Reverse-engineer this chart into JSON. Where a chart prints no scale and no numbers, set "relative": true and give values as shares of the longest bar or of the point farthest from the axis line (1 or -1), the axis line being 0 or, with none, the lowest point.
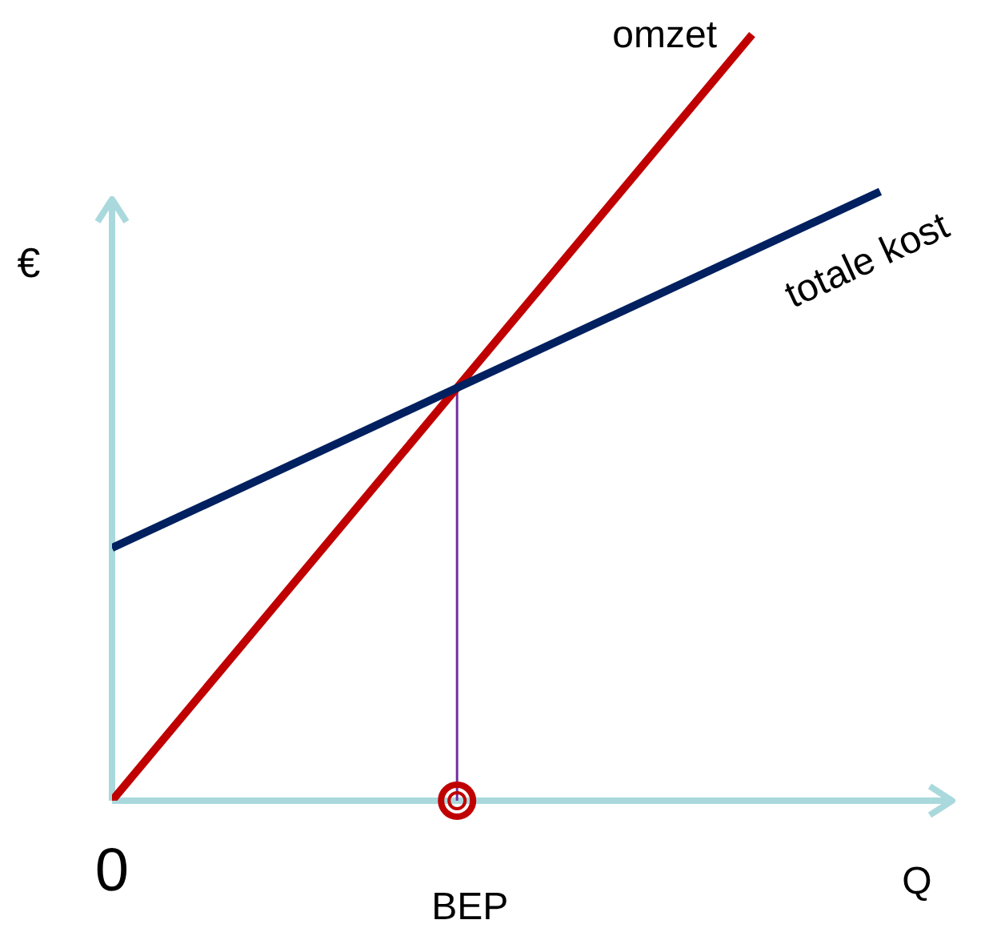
{
  "chart_data": {
    "type": "line",
    "relative": true,
    "xlabel": "Q",
    "ylabel": "€",
    "categories": [
      null,
      null,
      null,
      null,
      null,
      null,
      null,
      null,
      null,
      null,
      null,
      null,
      null,
      null,
      null,
      null,
      null,
      null,
      null,
      null,
      null,
      null,
      null,
      null,
      null
    ],
    "series": [
      {
        "name": "omzet",
        "color": "#c00000",
        "values": [
          0,
          null,
          null,
          null,
          null,
          null,
          null,
          null,
          null,
          null,
          null,
          null,
          null,
          null,
          null,
          null,
          null,
          null,
          null,
          null,
          1,
          null,
          null,
          null,
          null
        ]
      },
      {
        "name": "totale kost",
        "color": "#002060",
        "values": [
          0.33,
          null,
          null,
          null,
          null,
          null,
          null,
          null,
          null,
          null,
          null,
          null,
          null,
          null,
          null,
          null,
          null,
          null,
          null,
          null,
          null,
          null,
          null,
          null,
          0.795
        ]
      }
    ],
    "annotations": [
      "0",
      "BEP"
    ]
  }
}
